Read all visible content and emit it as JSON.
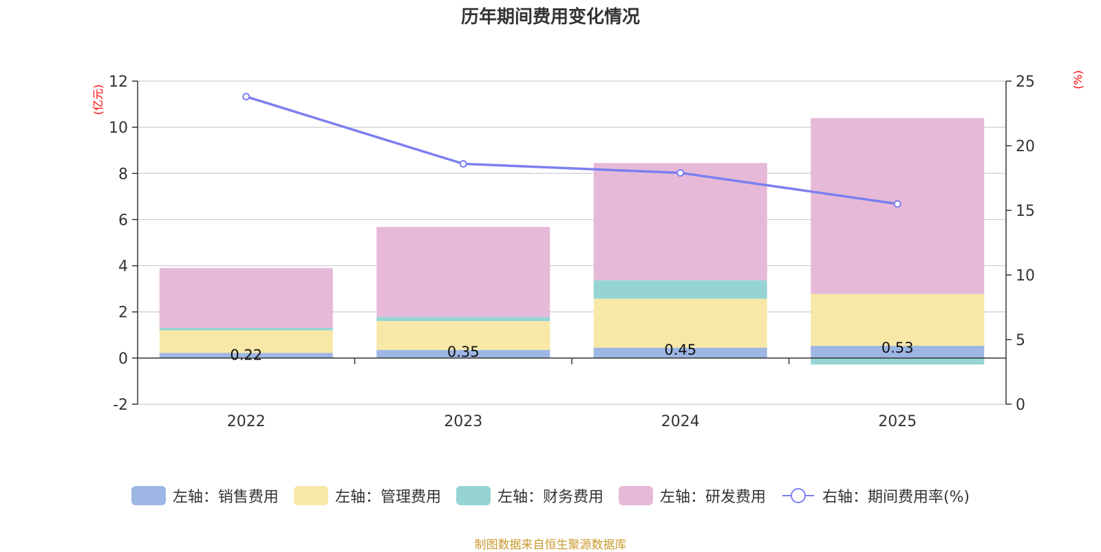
{
  "chart_data": {
    "type": "bar",
    "title": "历年期间费用变化情况",
    "categories": [
      "2022",
      "2023",
      "2024",
      "2025"
    ],
    "y_left": {
      "unit_label": "(亿元)",
      "range": [
        -2,
        12
      ],
      "ticks": [
        -2,
        0,
        2,
        4,
        6,
        8,
        10,
        12
      ]
    },
    "y_right": {
      "unit_label": "(%)",
      "range": [
        0,
        25
      ],
      "ticks": [
        0,
        5,
        10,
        15,
        20,
        25
      ]
    },
    "series": [
      {
        "name": "左轴：销售费用",
        "axis": "left",
        "type": "bar",
        "stacked": true,
        "color": "#9db6e3",
        "values": [
          0.22,
          0.35,
          0.45,
          0.53
        ],
        "labels": [
          "0.22",
          "0.35",
          "0.45",
          "0.53"
        ]
      },
      {
        "name": "左轴：管理费用",
        "axis": "left",
        "type": "bar",
        "stacked": true,
        "color": "#f8e8a8",
        "values": [
          0.98,
          1.25,
          2.12,
          2.25
        ]
      },
      {
        "name": "左轴：财务费用",
        "axis": "left",
        "type": "bar",
        "stacked": true,
        "color": "#96d4d4",
        "values": [
          0.11,
          0.18,
          0.8,
          -0.28
        ]
      },
      {
        "name": "左轴：研发费用",
        "axis": "left",
        "type": "bar",
        "stacked": true,
        "color": "#e7b9d8",
        "values": [
          2.59,
          3.9,
          5.08,
          7.62
        ]
      },
      {
        "name": "右轴：期间费用率(%)",
        "axis": "right",
        "type": "line",
        "color": "#7b7ff0",
        "values": [
          23.8,
          18.6,
          17.9,
          15.5
        ]
      }
    ]
  },
  "source": "制图数据来自恒生聚源数据库"
}
